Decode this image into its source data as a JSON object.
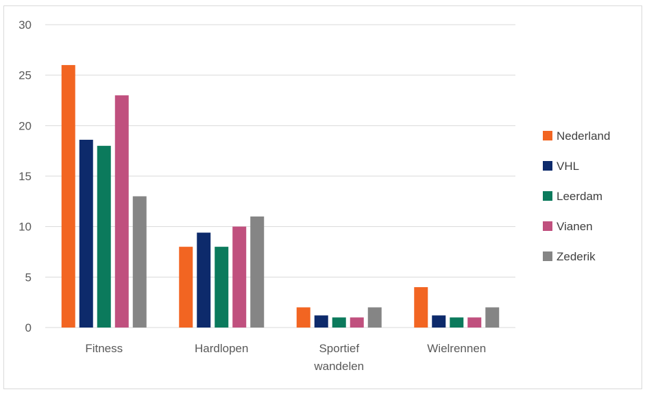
{
  "chart_data": {
    "type": "bar",
    "title": "",
    "xlabel": "",
    "ylabel": "",
    "ylim": [
      0,
      30
    ],
    "yticks": [
      0,
      5,
      10,
      15,
      20,
      25,
      30
    ],
    "grid": true,
    "legend_position": "right",
    "categories": [
      [
        "Fitness"
      ],
      [
        "Hardlopen"
      ],
      [
        "Sportief",
        "wandelen"
      ],
      [
        "Wielrennen"
      ]
    ],
    "series": [
      {
        "name": "Nederland",
        "color": "#F26522",
        "values": [
          26,
          8,
          2,
          4
        ]
      },
      {
        "name": "VHL",
        "color": "#0D2A6B",
        "values": [
          18.6,
          9.4,
          1.2,
          1.2
        ]
      },
      {
        "name": "Leerdam",
        "color": "#0B7A5C",
        "values": [
          18,
          8,
          1,
          1
        ]
      },
      {
        "name": "Vianen",
        "color": "#C0507E",
        "values": [
          23,
          10,
          1,
          1
        ]
      },
      {
        "name": "Zederik",
        "color": "#858585",
        "values": [
          13,
          11,
          2,
          2
        ]
      }
    ]
  }
}
